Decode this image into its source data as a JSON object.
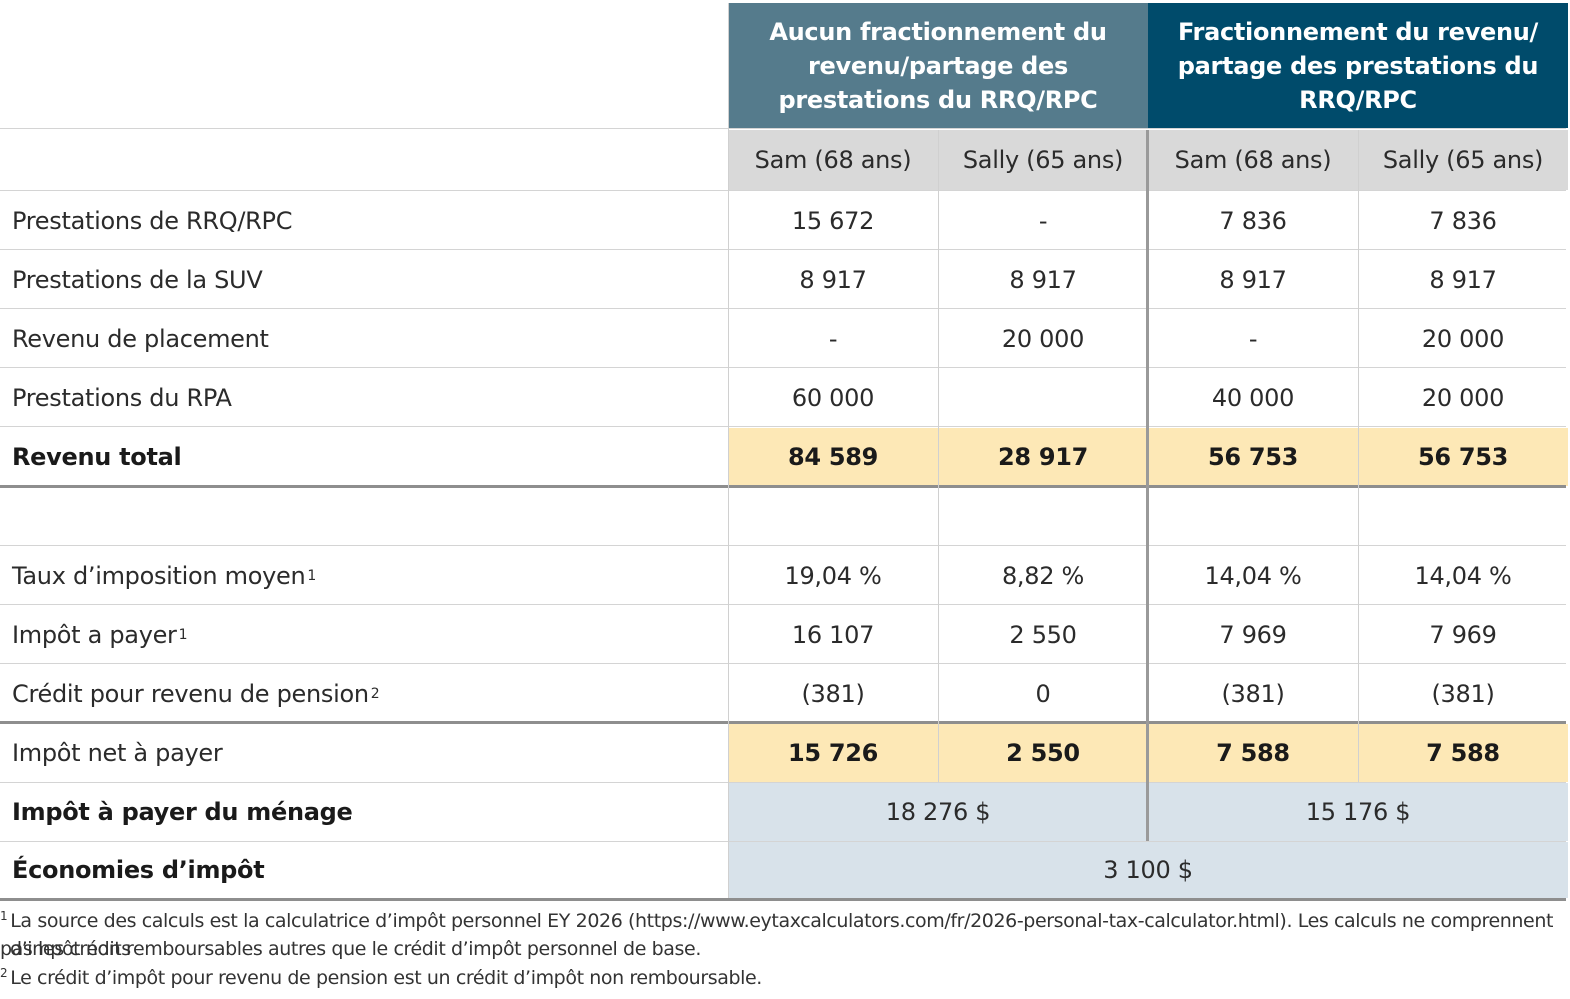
{
  "headers": {
    "group_a": "Aucun fractionnement du revenu/partage des prestations du RRQ/RPC",
    "group_b": "Fractionnement du revenu/ partage des prestations du RRQ/RPC",
    "subheaders": [
      "Sam (68 ans)",
      "Sally (65 ans)",
      "Sam (68 ans)",
      "Sally (65 ans)"
    ]
  },
  "rows": [
    {
      "label": "Prestations de RRQ/RPC",
      "values": [
        "15 672",
        "-",
        "7 836",
        "7 836"
      ]
    },
    {
      "label": "Prestations de la SUV",
      "values": [
        "8 917",
        "8 917",
        "8 917",
        "8 917"
      ]
    },
    {
      "label": "Revenu de placement",
      "values": [
        "-",
        "20 000",
        "-",
        "20 000"
      ]
    },
    {
      "label": "Prestations du RPA",
      "values": [
        "60 000",
        "",
        "40 000",
        "20 000"
      ]
    },
    {
      "label": "Revenu total",
      "values": [
        "84 589",
        "28 917",
        "56 753",
        "56 753"
      ]
    },
    {
      "label": "",
      "values": [
        "",
        "",
        "",
        ""
      ]
    },
    {
      "label": "Taux d’imposition moyen",
      "sup": "1",
      "values": [
        "19,04 %",
        "8,82 %",
        "14,04 %",
        "14,04 %"
      ]
    },
    {
      "label": "Impôt a payer",
      "sup": "1",
      "values": [
        "16 107",
        "2 550",
        "7 969",
        "7 969"
      ]
    },
    {
      "label": "Crédit pour revenu de pension",
      "sup": "2",
      "values": [
        "(381)",
        "0",
        "(381)",
        "(381)"
      ]
    },
    {
      "label": "Impôt net à payer",
      "values": [
        "15 726",
        "2 550",
        "7 588",
        "7 588"
      ]
    }
  ],
  "household": {
    "label": "Impôt à payer du ménage",
    "value_a": "18 276 $",
    "value_b": "15 176 $"
  },
  "savings": {
    "label": "Économies d’impôt",
    "value": "3 100 $"
  },
  "footnotes": [
    {
      "marker": "1",
      "text": "La source des calculs est la calculatrice d’impôt personnel EY 2026 (https://www.eytaxcalculators.com/fr/2026-personal-tax-calculator.html). Les calculs ne comprennent pas les crédits",
      "text2": "d’impôt non remboursables autres que le crédit d’impôt personnel de base."
    },
    {
      "marker": "2",
      "text": "Le crédit d’impôt pour revenu de pension est un crédit d’impôt non remboursable."
    }
  ],
  "colors": {
    "header_a": "#557b8c",
    "header_b": "#004b6b",
    "subheader": "#d9d9d9",
    "highlight": "#fde8b6",
    "summary": "#d8e2ea"
  }
}
